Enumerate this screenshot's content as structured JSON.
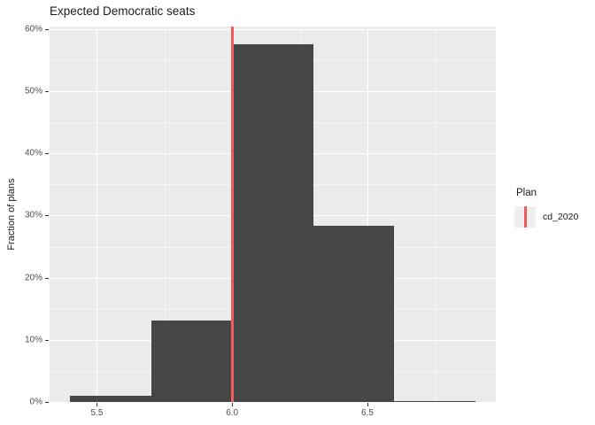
{
  "colors": {
    "bar": "#464646",
    "vline": "#F05B5B",
    "panel_bg": "#EBEBEB",
    "grid_major": "#FFFFFF",
    "grid_minor": "rgba(255,255,255,0.55)",
    "legend_key_bg": "#EFEFEF",
    "axis_text": "#4D4D4D",
    "tick_mark": "#333333"
  },
  "legend": {
    "title": "Plan",
    "entries": [
      {
        "label": "cd_2020",
        "key_type": "vertical-line",
        "key_color": "#F05B5B"
      }
    ]
  },
  "chart_data": {
    "type": "bar",
    "subtype": "histogram",
    "title": "Expected Democratic seats",
    "xlabel": "",
    "ylabel": "Fraction of plans",
    "xlim": [
      5.325,
      6.975
    ],
    "ylim": [
      0,
      60.4
    ],
    "grid": true,
    "legend_position": "right",
    "bins": [
      {
        "x0": 5.4,
        "x1": 5.7,
        "pct": 1.0
      },
      {
        "x0": 5.7,
        "x1": 6.0,
        "pct": 13.1
      },
      {
        "x0": 6.0,
        "x1": 6.3,
        "pct": 57.5
      },
      {
        "x0": 6.3,
        "x1": 6.6,
        "pct": 28.3
      },
      {
        "x0": 6.6,
        "x1": 6.9,
        "pct": 0.2
      }
    ],
    "vline": {
      "x": 6.0,
      "series": "cd_2020"
    },
    "x_tick_values": [
      5.5,
      6.0,
      6.5
    ],
    "x_tick_labels": [
      "5.5",
      "6.0",
      "6.5"
    ],
    "x_minor_ticks": [
      5.75,
      6.25,
      6.75
    ],
    "y_tick_values": [
      0,
      10,
      20,
      30,
      40,
      50,
      60
    ],
    "y_tick_labels": [
      "0%",
      "10%",
      "20%",
      "30%",
      "40%",
      "50%",
      "60%"
    ],
    "y_minor_ticks": [
      5,
      15,
      25,
      35,
      45,
      55
    ]
  }
}
